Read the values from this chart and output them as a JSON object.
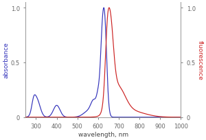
{
  "title": "",
  "xlabel": "wavelength, nm",
  "ylabel_left": "absorbance",
  "ylabel_right": "fluorescence",
  "xlim": [
    250,
    1000
  ],
  "ylim": [
    0,
    1.05
  ],
  "excitation_color": "#3333bb",
  "emission_color": "#cc2222",
  "tick_color": "#666666",
  "spine_color": "#999999",
  "background_color": "#ffffff",
  "label_fontsize": 6.5,
  "tick_fontsize": 6,
  "yticks": [
    0,
    0.5,
    1.0
  ],
  "xticks": [
    300,
    400,
    500,
    600,
    700,
    800,
    900,
    1000
  ]
}
